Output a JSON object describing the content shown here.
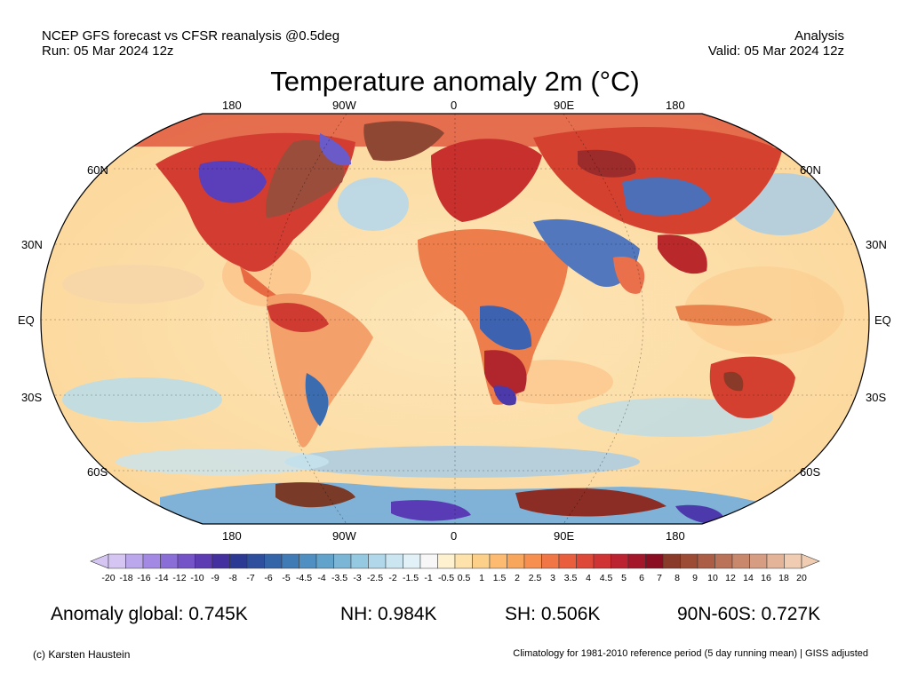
{
  "header": {
    "source_line": "NCEP GFS forecast vs CFSR reanalysis @0.5deg",
    "run_line": "Run: 05 Mar 2024 12z",
    "mode": "Analysis",
    "valid_line": "Valid: 05 Mar 2024 12z"
  },
  "title": "Temperature anomaly 2m (°C)",
  "map": {
    "projection": "Robinson",
    "lon_labels": [
      "180",
      "90W",
      "0",
      "90E",
      "180"
    ],
    "lat_labels_left": [
      "60N",
      "30N",
      "EQ",
      "30S",
      "60S"
    ],
    "lat_labels_right": [
      "60N",
      "30N",
      "EQ",
      "30S",
      "60S"
    ]
  },
  "colorbar": {
    "labels": [
      "-20",
      "-18",
      "-16",
      "-14",
      "-12",
      "-10",
      "-9",
      "-8",
      "-7",
      "-6",
      "-5",
      "-4.5",
      "-4",
      "-3.5",
      "-3",
      "-2.5",
      "-2",
      "-1.5",
      "-1",
      "-0.5",
      "0.5",
      "1",
      "1.5",
      "2",
      "2.5",
      "3",
      "3.5",
      "4",
      "4.5",
      "5",
      "6",
      "7",
      "8",
      "9",
      "10",
      "12",
      "14",
      "16",
      "18",
      "20"
    ],
    "colors": [
      "#d4c5f2",
      "#bba7ec",
      "#a389e3",
      "#8b6dd8",
      "#7452c8",
      "#5d3bb3",
      "#4530a0",
      "#2d3a93",
      "#2e4f9e",
      "#3565a9",
      "#417bb5",
      "#4f8fc1",
      "#62a3cc",
      "#7bb6d7",
      "#95c8e1",
      "#b1d8ea",
      "#cbe6f1",
      "#e2f1f7",
      "#f7f7f7",
      "#fdf1cf",
      "#fde2ab",
      "#fdd089",
      "#fcbb70",
      "#f9a65d",
      "#f68f50",
      "#f17646",
      "#e95f3e",
      "#de4838",
      "#cf3333",
      "#bc2330",
      "#a4172a",
      "#8a0d22",
      "#8a3a28",
      "#9c4b34",
      "#ab5e45",
      "#ba7258",
      "#c9876c",
      "#d79d82",
      "#e4b498",
      "#efccb2"
    ]
  },
  "stats": {
    "global": "Anomaly global: 0.745K",
    "nh": "NH: 0.984K",
    "sh": "SH: 0.506K",
    "arctic": "90N-60S: 0.727K"
  },
  "footer": {
    "credit": "(c) Karsten Haustein",
    "note": "Climatology for 1981-2010 reference period (5 day running mean) | GISS adjusted"
  }
}
